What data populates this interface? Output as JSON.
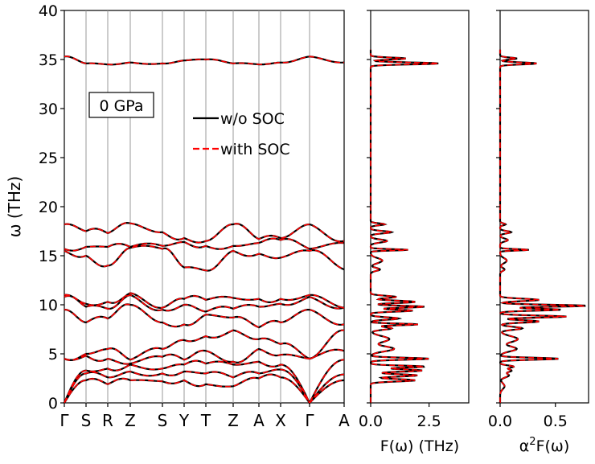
{
  "chart_data": [
    {
      "type": "line",
      "subtype": "phonon-dispersion",
      "title": "",
      "ylabel": "ω (THz)",
      "xlabel": "",
      "ylim": [
        0,
        40
      ],
      "yticks": [
        0,
        5,
        10,
        15,
        20,
        25,
        30,
        35,
        40
      ],
      "path_labels": [
        "Γ",
        "S",
        "R",
        "Z",
        "S",
        "Y",
        "T",
        "Z",
        "A",
        "X",
        "Γ",
        "A"
      ],
      "annotation": "0 GPa",
      "legend": {
        "placement": "upper-center",
        "entries": [
          {
            "label": "w/o SOC",
            "color": "#000000",
            "style": "solid"
          },
          {
            "label": "with SOC",
            "color": "#ff0000",
            "style": "dashed"
          }
        ]
      },
      "bands_sampled_at_path_points": [
        [
          0,
          2.3,
          1.9,
          2.3,
          2.2,
          2.3,
          1.9,
          1.7,
          2.5,
          2.6,
          0,
          2.3
        ],
        [
          0,
          3.0,
          2.6,
          3.2,
          3.0,
          3.2,
          3.0,
          2.6,
          3.0,
          3.4,
          0,
          2.9
        ],
        [
          0,
          3.3,
          3.5,
          3.9,
          3.5,
          3.9,
          4.0,
          3.9,
          4.2,
          3.9,
          0,
          4.4
        ],
        [
          4.5,
          4.8,
          4.5,
          4.0,
          4.7,
          4.4,
          5.3,
          4.2,
          5.5,
          4.9,
          4.5,
          5.3
        ],
        [
          4.5,
          5.0,
          5.5,
          4.4,
          5.5,
          6.4,
          6.8,
          7.4,
          6.5,
          6.0,
          4.5,
          7.4
        ],
        [
          9.5,
          8.2,
          8.6,
          10.0,
          8.2,
          8.0,
          9.0,
          8.7,
          7.7,
          8.2,
          9.5,
          8.0
        ],
        [
          10.8,
          9.8,
          9.6,
          11.0,
          9.5,
          10.0,
          9.3,
          9.6,
          9.8,
          10.1,
          10.8,
          9.7
        ],
        [
          11.0,
          10.1,
          10.3,
          11.2,
          9.7,
          10.6,
          10.5,
          10.7,
          10.6,
          10.6,
          11.0,
          9.7
        ],
        [
          15.5,
          15.0,
          14.0,
          15.8,
          15.7,
          13.8,
          13.5,
          15.5,
          15.2,
          14.8,
          15.5,
          13.6
        ],
        [
          15.7,
          15.9,
          15.9,
          15.9,
          16.0,
          16.4,
          16.0,
          16.0,
          16.3,
          16.6,
          15.7,
          16.3
        ],
        [
          18.2,
          17.5,
          17.3,
          18.3,
          17.4,
          16.8,
          16.5,
          18.2,
          16.7,
          16.8,
          18.2,
          16.5
        ],
        [
          35.3,
          34.6,
          34.5,
          34.7,
          34.6,
          34.9,
          35.0,
          34.6,
          34.5,
          34.7,
          35.3,
          34.7
        ]
      ]
    },
    {
      "type": "line",
      "subtype": "density-of-states",
      "xlabel": "F(ω) (THz)",
      "xlim": [
        0,
        4.2
      ],
      "xticks": [
        0.0,
        2.5
      ],
      "xtick_labels": [
        "0.0",
        "2.5"
      ],
      "peaks": [
        {
          "w": 2.3,
          "v": 1.9,
          "s": 0.12
        },
        {
          "w": 2.8,
          "v": 2.0,
          "s": 0.12
        },
        {
          "w": 3.3,
          "v": 2.2,
          "s": 0.12
        },
        {
          "w": 3.7,
          "v": 2.3,
          "s": 0.1
        },
        {
          "w": 4.5,
          "v": 2.5,
          "s": 0.1
        },
        {
          "w": 5.5,
          "v": 1.0,
          "s": 0.25
        },
        {
          "w": 6.5,
          "v": 0.8,
          "s": 0.3
        },
        {
          "w": 7.6,
          "v": 0.9,
          "s": 0.15
        },
        {
          "w": 8.0,
          "v": 2.0,
          "s": 0.08
        },
        {
          "w": 8.6,
          "v": 1.2,
          "s": 0.12
        },
        {
          "w": 9.4,
          "v": 1.8,
          "s": 0.1
        },
        {
          "w": 9.8,
          "v": 2.3,
          "s": 0.1
        },
        {
          "w": 10.3,
          "v": 1.9,
          "s": 0.12
        },
        {
          "w": 10.8,
          "v": 1.1,
          "s": 0.12
        },
        {
          "w": 13.6,
          "v": 0.4,
          "s": 0.15
        },
        {
          "w": 14.5,
          "v": 0.5,
          "s": 0.25
        },
        {
          "w": 15.6,
          "v": 1.6,
          "s": 0.07
        },
        {
          "w": 16.5,
          "v": 0.7,
          "s": 0.15
        },
        {
          "w": 17.4,
          "v": 0.9,
          "s": 0.12
        },
        {
          "w": 18.2,
          "v": 0.6,
          "s": 0.1
        },
        {
          "w": 34.6,
          "v": 2.9,
          "s": 0.1
        },
        {
          "w": 35.1,
          "v": 1.5,
          "s": 0.1
        }
      ]
    },
    {
      "type": "line",
      "subtype": "eliashberg-function",
      "xlabel": "α²F(ω)",
      "xlim": [
        0,
        0.8
      ],
      "xticks": [
        0.0,
        0.5
      ],
      "xtick_labels": [
        "0.0",
        "0.5"
      ],
      "peaks": [
        {
          "w": 1.7,
          "v": 0.04,
          "s": 0.3
        },
        {
          "w": 2.8,
          "v": 0.08,
          "s": 0.2
        },
        {
          "w": 3.3,
          "v": 0.1,
          "s": 0.15
        },
        {
          "w": 3.7,
          "v": 0.12,
          "s": 0.12
        },
        {
          "w": 4.5,
          "v": 0.53,
          "s": 0.1
        },
        {
          "w": 5.5,
          "v": 0.15,
          "s": 0.25
        },
        {
          "w": 6.5,
          "v": 0.16,
          "s": 0.3
        },
        {
          "w": 7.6,
          "v": 0.2,
          "s": 0.15
        },
        {
          "w": 8.3,
          "v": 0.35,
          "s": 0.12
        },
        {
          "w": 8.8,
          "v": 0.6,
          "s": 0.1
        },
        {
          "w": 9.5,
          "v": 0.55,
          "s": 0.1
        },
        {
          "w": 9.9,
          "v": 0.78,
          "s": 0.1
        },
        {
          "w": 10.5,
          "v": 0.35,
          "s": 0.12
        },
        {
          "w": 13.6,
          "v": 0.04,
          "s": 0.15
        },
        {
          "w": 14.5,
          "v": 0.06,
          "s": 0.25
        },
        {
          "w": 15.6,
          "v": 0.26,
          "s": 0.07
        },
        {
          "w": 16.6,
          "v": 0.07,
          "s": 0.15
        },
        {
          "w": 17.4,
          "v": 0.1,
          "s": 0.12
        },
        {
          "w": 18.2,
          "v": 0.05,
          "s": 0.1
        },
        {
          "w": 34.6,
          "v": 0.33,
          "s": 0.1
        },
        {
          "w": 35.1,
          "v": 0.15,
          "s": 0.1
        }
      ]
    }
  ]
}
